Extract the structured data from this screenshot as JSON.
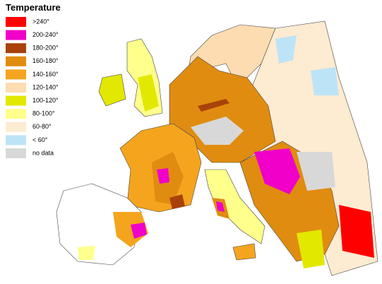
{
  "legend": {
    "title": "Temperature",
    "items": [
      {
        "label": ">240°",
        "color": "#ff0000"
      },
      {
        "label": "200-240°",
        "color": "#f000c8"
      },
      {
        "label": "180-200°",
        "color": "#a8420a"
      },
      {
        "label": "160-180°",
        "color": "#e08c10"
      },
      {
        "label": "140-160°",
        "color": "#f5a41e"
      },
      {
        "label": "120-140°",
        "color": "#fcdcb0"
      },
      {
        "label": "100-120°",
        "color": "#e2e800"
      },
      {
        "label": "80-100°",
        "color": "#ffff8c"
      },
      {
        "label": "60-80°",
        "color": "#fdebd2"
      },
      {
        "label": "< 60°",
        "color": "#bde4f6"
      },
      {
        "label": "no data",
        "color": "#d8d8d8"
      }
    ]
  }
}
